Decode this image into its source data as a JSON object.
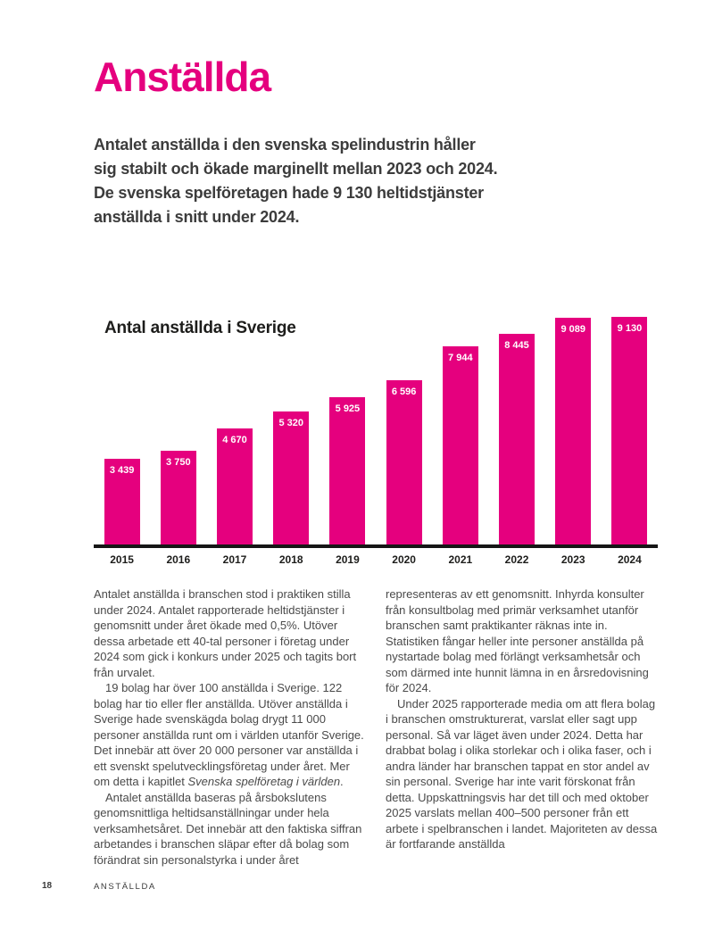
{
  "page": {
    "title": "Anställda",
    "intro_lines": [
      "Antalet anställda i den svenska spelindustrin håller",
      "sig stabilt och ökade marginellt mellan 2023 och 2024.",
      "De svenska spelföretagen hade 9 130 heltidstjänster",
      "anställda i snitt under 2024."
    ],
    "accent_color": "#e5007e"
  },
  "chart_data": {
    "type": "bar",
    "title": "Antal anställda i Sverige",
    "categories": [
      "2015",
      "2016",
      "2017",
      "2018",
      "2019",
      "2020",
      "2021",
      "2022",
      "2023",
      "2024"
    ],
    "values": [
      3439,
      3750,
      4670,
      5320,
      5925,
      6596,
      7944,
      8445,
      9089,
      9130
    ],
    "value_labels": [
      "3 439",
      "3 750",
      "4 670",
      "5 320",
      "5 925",
      "6 596",
      "7 944",
      "8 445",
      "9 089",
      "9 130"
    ],
    "xlabel": "",
    "ylabel": "",
    "ylim": [
      0,
      9130
    ],
    "grid": false,
    "legend": false,
    "bar_color": "#e5007e",
    "axis_color": "#161616",
    "value_label_position": "inside-top",
    "value_label_color": "#ffffff"
  },
  "body": {
    "p1": "Antalet anställda i branschen stod i praktiken stilla under 2024. Antalet rapporterade heltidstjänster i genomsnitt under året ökade med 0,5%. Utöver dessa arbetade ett 40-tal personer i företag under 2024 som gick i konkurs under 2025 och tagits bort från urvalet.",
    "p2_before": "19 bolag har över 100 anställda i Sverige. 122 bolag har tio eller fler anställda. Utöver anställda i Sverige hade svenskägda bolag drygt 11 000 personer anställda runt om i världen utanför Sverige. Det innebär att över 20 000 personer var anställda i ett svenskt spelutvecklingsföretag under året. Mer om detta i kapitlet ",
    "p2_italic": "Svenska spelföretag i världen",
    "p2_after": ".",
    "p3": "Antalet anställda baseras på årsbokslutens genomsnittliga heltidsanställningar under hela verksamhetsåret. Det innebär att den faktiska siffran arbetandes i branschen släpar efter då bolag som förändrat sin personalstyrka i under året representeras av ett genomsnitt. Inhyrda konsulter från konsultbolag med primär verksamhet utanför branschen samt praktikanter räknas inte in. Statistiken fångar heller inte personer anställda på nystartade bolag med förlängt verksamhetsår och som därmed inte hunnit lämna in en årsredovisning för 2024.",
    "p4": "Under 2025 rapporterade media om att flera bolag i branschen omstrukturerat, varslat eller sagt upp personal. Så var läget även under 2024. Detta har drabbat bolag i olika storlekar och i olika faser, och i andra länder har branschen tappat en stor andel av sin personal. Sverige har inte varit förskonat från detta. Uppskattningsvis har det till och med oktober 2025 varslats mellan 400–500 personer från ett arbete i spelbranschen i landet. Majoriteten av dessa är fortfarande anställda"
  },
  "footer": {
    "page_number": "18",
    "section_label": "ANSTÄLLDA"
  }
}
